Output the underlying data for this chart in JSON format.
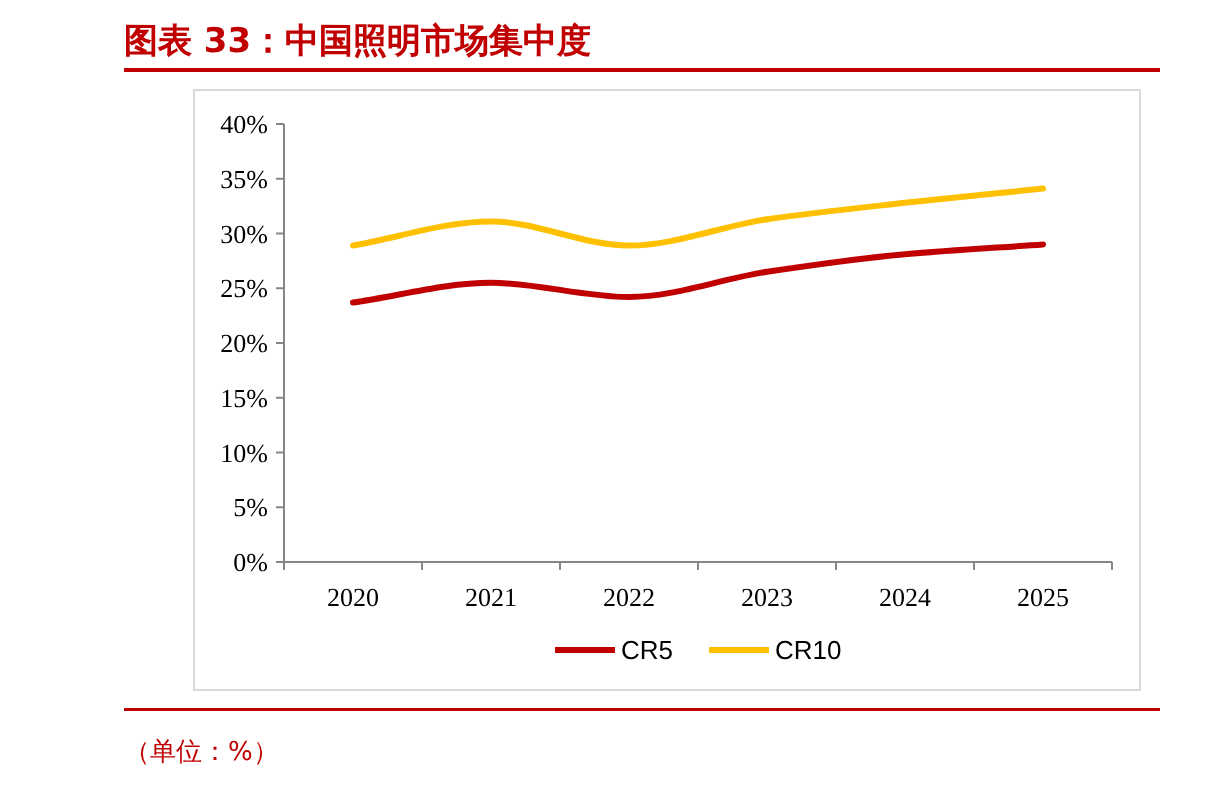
{
  "chart_data": {
    "type": "line",
    "title": "图表 33：中国照明市场集中度",
    "annotations": [
      "（单位：%）"
    ],
    "categories": [
      "2020",
      "2021",
      "2022",
      "2023",
      "2024",
      "2025"
    ],
    "series": [
      {
        "name": "CR5",
        "color": "#c00000",
        "values": [
          23.7,
          25.5,
          24.2,
          26.5,
          28.1,
          29.0
        ]
      },
      {
        "name": "CR10",
        "color": "#ffc000",
        "values": [
          28.9,
          31.1,
          28.9,
          31.3,
          32.8,
          34.1
        ]
      }
    ],
    "ylim": [
      0,
      40
    ],
    "yticks": [
      {
        "value": 0,
        "label": "0%"
      },
      {
        "value": 5,
        "label": "5%"
      },
      {
        "value": 10,
        "label": "10%"
      },
      {
        "value": 15,
        "label": "15%"
      },
      {
        "value": 20,
        "label": "20%"
      },
      {
        "value": 25,
        "label": "25%"
      },
      {
        "value": 30,
        "label": "30%"
      },
      {
        "value": 35,
        "label": "35%"
      },
      {
        "value": 40,
        "label": "40%"
      }
    ],
    "legend": "bottom",
    "grid": false,
    "marker": "none",
    "line_style": "solid"
  }
}
